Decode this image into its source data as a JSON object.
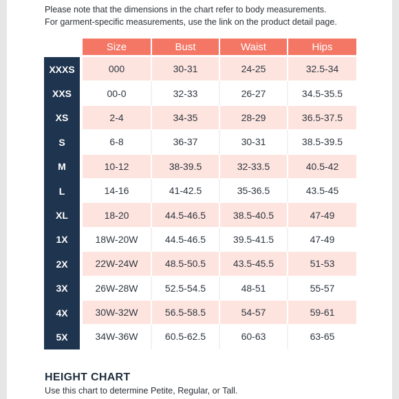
{
  "page": {
    "note_line1": "Please note that the dimensions in the chart refer to body measurements.",
    "note_line2": "For garment-specific measurements, use the link on the product detail page."
  },
  "table": {
    "headers": [
      "Size",
      "Bust",
      "Waist",
      "Hips"
    ],
    "rows": [
      {
        "label": "XXXS",
        "size": "000",
        "bust": "30-31",
        "waist": "24-25",
        "hips": "32.5-34"
      },
      {
        "label": "XXS",
        "size": "00-0",
        "bust": "32-33",
        "waist": "26-27",
        "hips": "34.5-35.5"
      },
      {
        "label": "XS",
        "size": "2-4",
        "bust": "34-35",
        "waist": "28-29",
        "hips": "36.5-37.5"
      },
      {
        "label": "S",
        "size": "6-8",
        "bust": "36-37",
        "waist": "30-31",
        "hips": "38.5-39.5"
      },
      {
        "label": "M",
        "size": "10-12",
        "bust": "38-39.5",
        "waist": "32-33.5",
        "hips": "40.5-42"
      },
      {
        "label": "L",
        "size": "14-16",
        "bust": "41-42.5",
        "waist": "35-36.5",
        "hips": "43.5-45"
      },
      {
        "label": "XL",
        "size": "18-20",
        "bust": "44.5-46.5",
        "waist": "38.5-40.5",
        "hips": "47-49"
      },
      {
        "label": "1X",
        "size": "18W-20W",
        "bust": "44.5-46.5",
        "waist": "39.5-41.5",
        "hips": "47-49"
      },
      {
        "label": "2X",
        "size": "22W-24W",
        "bust": "48.5-50.5",
        "waist": "43.5-45.5",
        "hips": "51-53"
      },
      {
        "label": "3X",
        "size": "26W-28W",
        "bust": "52.5-54.5",
        "waist": "48-51",
        "hips": "55-57"
      },
      {
        "label": "4X",
        "size": "30W-32W",
        "bust": "56.5-58.5",
        "waist": "54-57",
        "hips": "59-61"
      },
      {
        "label": "5X",
        "size": "34W-36W",
        "bust": "60.5-62.5",
        "waist": "60-63",
        "hips": "63-65"
      }
    ]
  },
  "height_chart": {
    "title": "HEIGHT CHART",
    "subtitle": "Use this chart to determine Petite, Regular, or Tall."
  },
  "colors": {
    "header_bg": "#f47766",
    "label_bg": "#1f344f",
    "pink_row": "#fde4df"
  }
}
